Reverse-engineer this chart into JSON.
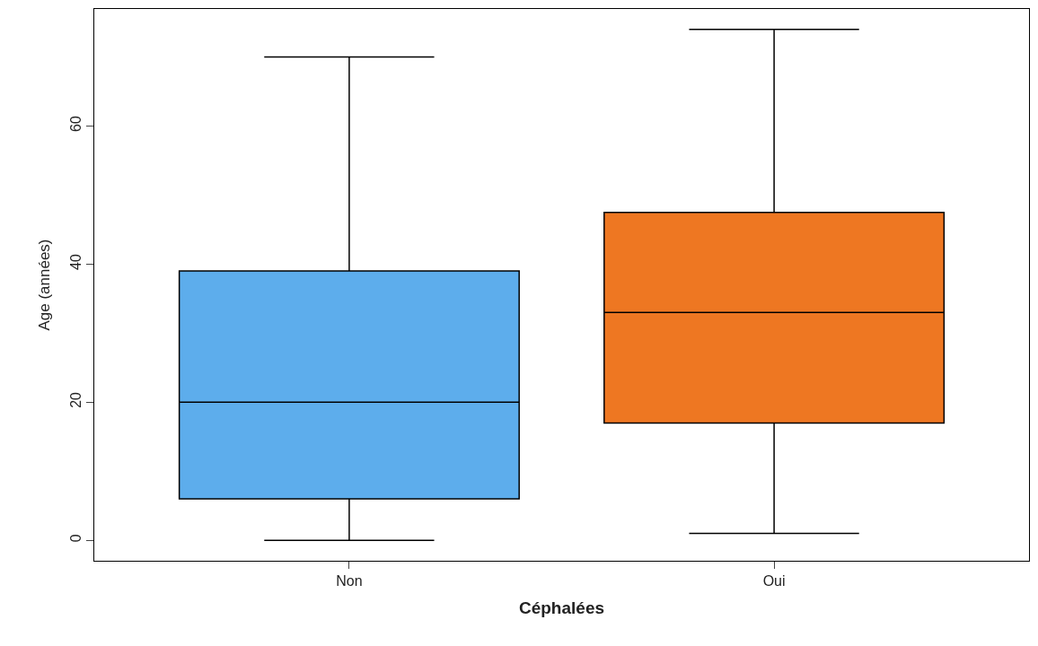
{
  "chart_data": {
    "type": "box",
    "xlabel": "Céphalées",
    "ylabel": "Age (années)",
    "categories": [
      "Non",
      "Oui"
    ],
    "boxes": [
      {
        "low": 0,
        "q1": 6,
        "median": 20,
        "q3": 39,
        "high": 70
      },
      {
        "low": 1,
        "q1": 17,
        "median": 33,
        "q3": 47.5,
        "high": 74
      }
    ],
    "colors": [
      "#5dadec",
      "#ee7722"
    ],
    "ylim": [
      -2.96,
      76.96
    ],
    "yticks": [
      0,
      20,
      40,
      60
    ]
  }
}
